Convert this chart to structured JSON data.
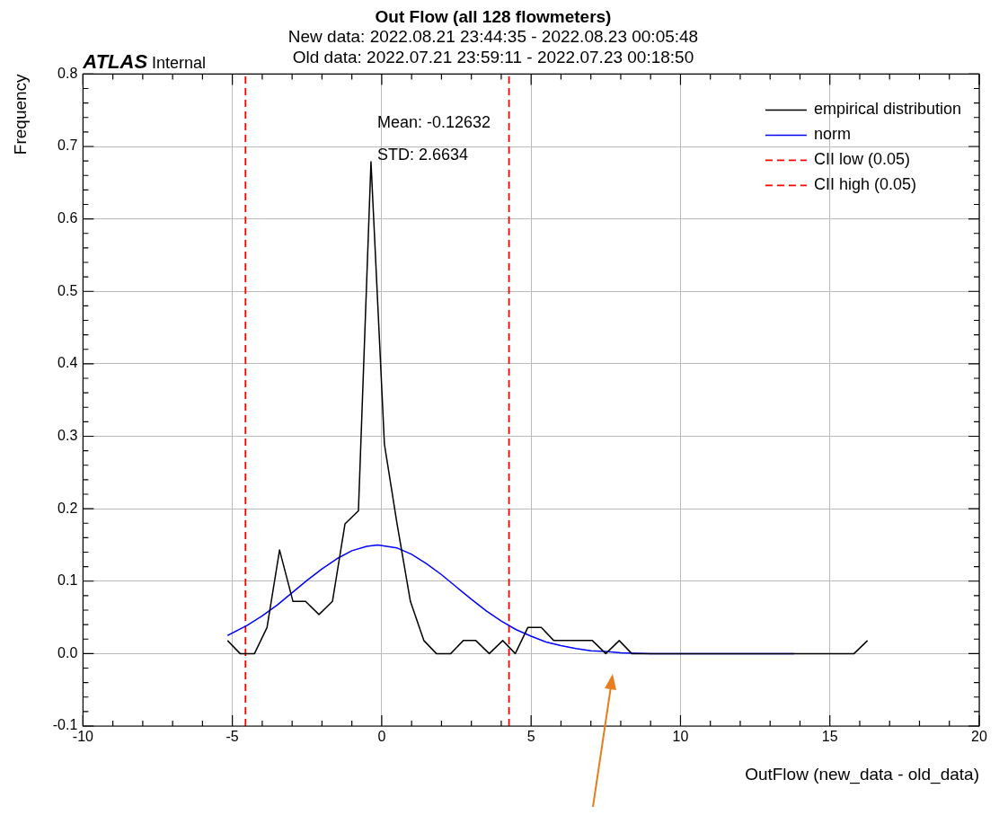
{
  "chart_data": {
    "type": "line",
    "title": "Out Flow (all 128 flowmeters)",
    "subtitle": "New data: 2022.08.21 23:44:35 - 2022.08.23 00:05:48\nOld data: 2022.07.21 23:59:11 - 2022.07.23 00:18:50",
    "xlabel": "OutFlow (new_data - old_data)",
    "ylabel": "Frequency",
    "annotations": [
      "ATLAS Internal",
      "Mean: -0.12632",
      "STD: 2.6634"
    ],
    "series": [
      {
        "name": "empirical distribution",
        "color": "#000000",
        "x": [
          -5.16,
          -4.74,
          -4.26,
          -3.84,
          -3.42,
          -2.97,
          -2.55,
          -2.1,
          -1.65,
          -1.23,
          -0.78,
          -0.36,
          0.09,
          0.51,
          0.96,
          1.41,
          1.83,
          2.31,
          2.73,
          3.15,
          3.6,
          4.05,
          4.47,
          4.89,
          5.34,
          5.76,
          6.21,
          6.63,
          7.05,
          7.5,
          7.95,
          8.37,
          15.81,
          16.26
        ],
        "values": [
          0.018,
          0,
          0,
          0.036,
          0.143,
          0.072,
          0.072,
          0.054,
          0.072,
          0.179,
          0.197,
          0.679,
          0.289,
          0.18,
          0.072,
          0.018,
          0,
          0,
          0.018,
          0.018,
          0,
          0.018,
          0,
          0.036,
          0.036,
          0.018,
          0.018,
          0.018,
          0.018,
          0,
          0.018,
          0,
          0,
          0.018
        ]
      },
      {
        "name": "norm",
        "color": "#0000ff",
        "x": [
          -5.16,
          -4.5,
          -4,
          -3.5,
          -3,
          -2.5,
          -2,
          -1.5,
          -1,
          -0.5,
          -0.13,
          0.5,
          1,
          1.5,
          2,
          2.5,
          3,
          3.5,
          4,
          4.5,
          5,
          5.5,
          6,
          6.5,
          7,
          7.5,
          8,
          9,
          13.8
        ],
        "values": [
          0.025,
          0.039,
          0.052,
          0.067,
          0.084,
          0.101,
          0.117,
          0.131,
          0.142,
          0.148,
          0.15,
          0.146,
          0.137,
          0.124,
          0.109,
          0.092,
          0.075,
          0.059,
          0.045,
          0.033,
          0.024,
          0.016,
          0.011,
          0.007,
          0.004,
          0.003,
          0.001,
          0,
          0
        ]
      },
      {
        "name": "CII low (0.05)",
        "color": "#ff0000",
        "line_style": "dashed",
        "x": [
          -4.56,
          -4.56
        ],
        "values": [
          -0.1,
          0.8
        ]
      },
      {
        "name": "CII high (0.05)",
        "color": "#ff0000",
        "line_style": "dashed",
        "x": [
          4.26,
          4.26
        ],
        "values": [
          -0.1,
          0.8
        ]
      }
    ],
    "xlim": [
      -10,
      20
    ],
    "xticks": [
      -10,
      -5,
      0,
      5,
      10,
      15,
      20
    ],
    "ylim": [
      -0.1,
      0.8
    ],
    "yticks": [
      {
        "value": -0.1,
        "label": "-0.1"
      },
      {
        "value": 0,
        "label": "0.0"
      },
      {
        "value": 0.1,
        "label": "0.1"
      },
      {
        "value": 0.2,
        "label": "0.2"
      },
      {
        "value": 0.3,
        "label": "0.3"
      },
      {
        "value": 0.4,
        "label": "0.4"
      },
      {
        "value": 0.5,
        "label": "0.5"
      },
      {
        "value": 0.6,
        "label": "0.6"
      },
      {
        "value": 0.7,
        "label": "0.7"
      },
      {
        "value": 0.8,
        "label": "0.8"
      }
    ],
    "grid": true,
    "legend": "top right",
    "marker": "none",
    "line_style": "solid"
  }
}
